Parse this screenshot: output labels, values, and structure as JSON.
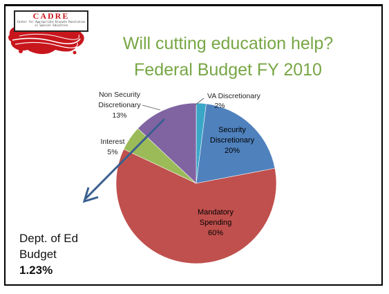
{
  "logo": {
    "text": "CADRE",
    "subtitle": "Center for Appropriate Dispute Resolution in Special Education"
  },
  "title_line1": "Will cutting education help?",
  "title_line2": "Federal Budget FY 2010",
  "callout": {
    "line1": "Dept. of Ed",
    "line2": "Budget",
    "value": "1.23%"
  },
  "colors": {
    "title": "#77a644",
    "arrow": "#3a5f8f"
  },
  "chart_data": {
    "type": "pie",
    "title": "",
    "slices": [
      {
        "name": "VA Discretionary",
        "percent_label": "2%",
        "value": 2,
        "color": "#3aa7c8"
      },
      {
        "name": "Security Discretionary",
        "percent_label": "20%",
        "value": 20,
        "color": "#4f81bd"
      },
      {
        "name": "Mandatory Spending",
        "percent_label": "60%",
        "value": 60,
        "color": "#c0504d"
      },
      {
        "name": "Interest",
        "percent_label": "5%",
        "value": 5,
        "color": "#9bbb59"
      },
      {
        "name": "Non Security Discretionary",
        "percent_label": "13%",
        "value": 13,
        "color": "#8064a2"
      }
    ]
  }
}
